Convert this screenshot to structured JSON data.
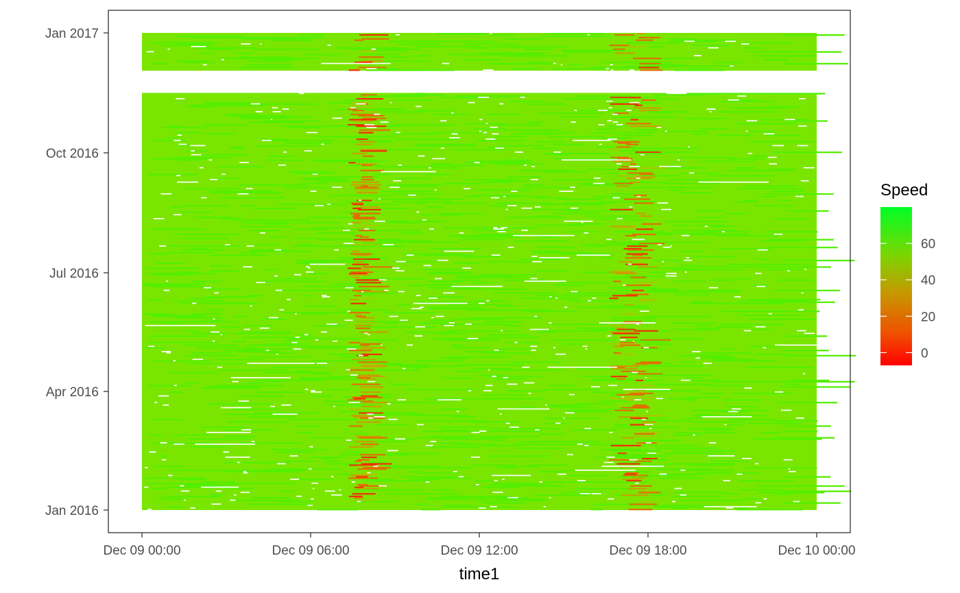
{
  "chart_data": {
    "type": "heatmap",
    "title": "",
    "xlabel": "time1",
    "ylabel": "",
    "x_axis": {
      "type": "datetime",
      "range": [
        "Dec 09 00:00",
        "Dec 10 00:00"
      ],
      "ticks": [
        {
          "label": "Dec 09 00:00",
          "hour": 0
        },
        {
          "label": "Dec 09 06:00",
          "hour": 6
        },
        {
          "label": "Dec 09 12:00",
          "hour": 12
        },
        {
          "label": "Dec 09 18:00",
          "hour": 18
        },
        {
          "label": "Dec 10 00:00",
          "hour": 24
        }
      ]
    },
    "y_axis": {
      "type": "date",
      "range": [
        "2015-12-23",
        "2017-01-22"
      ],
      "ticks": [
        {
          "label": "Jan 2016",
          "date": "2016-01-01"
        },
        {
          "label": "Apr 2016",
          "date": "2016-04-01"
        },
        {
          "label": "Jul 2016",
          "date": "2016-07-01"
        },
        {
          "label": "Oct 2016",
          "date": "2016-10-01"
        },
        {
          "label": "Jan 2017",
          "date": "2017-01-01"
        }
      ]
    },
    "data_blocks": [
      {
        "date_start": "2016-01-01",
        "date_end": "2016-11-16",
        "hour_start": 0,
        "hour_end": 24
      },
      {
        "date_start": "2016-12-03",
        "date_end": "2017-01-01",
        "hour_start": 0,
        "hour_end": 24
      }
    ],
    "hotspots": [
      {
        "hour_start": 7.3,
        "hour_end": 8.1,
        "typical_speed": 35
      },
      {
        "hour_start": 16.6,
        "hour_end": 18.3,
        "typical_speed": 30
      }
    ],
    "missing_data": "scattered white gaps",
    "legend": {
      "title": "Speed",
      "placement": "right",
      "range": [
        -7,
        80
      ],
      "ticks": [
        0,
        20,
        40,
        60
      ],
      "colors": {
        "low": "#ff0000",
        "mid": "#b5b800",
        "high": "#00ff26"
      }
    },
    "base_color": "#7ae600",
    "grid": false
  }
}
